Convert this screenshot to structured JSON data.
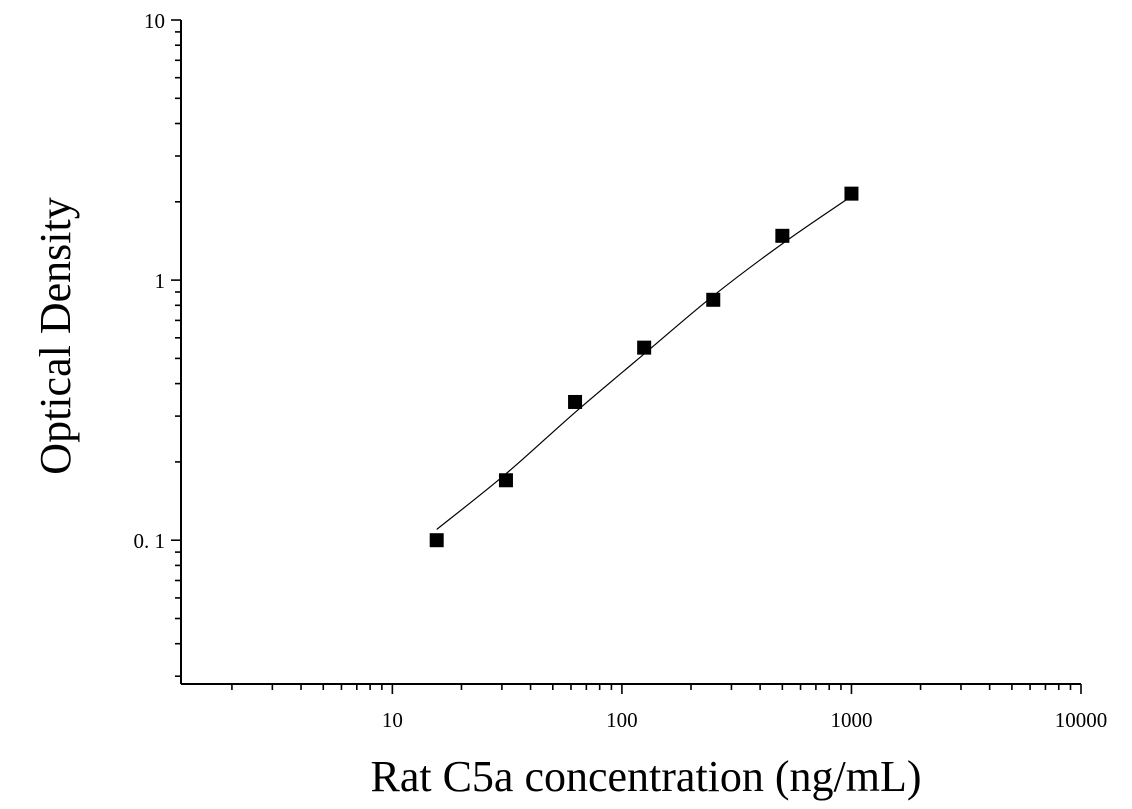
{
  "chart_data": {
    "type": "scatter",
    "title": "",
    "xlabel": "Rat C5a concentration (ng/mL)",
    "ylabel": "Optical Density",
    "xscale": "log",
    "yscale": "log",
    "xlim": [
      1.2,
      10000
    ],
    "ylim": [
      0.028,
      10
    ],
    "x_ticks": [
      {
        "value": 10,
        "label": "10"
      },
      {
        "value": 100,
        "label": "100"
      },
      {
        "value": 1000,
        "label": "1000"
      },
      {
        "value": 10000,
        "label": "10000"
      }
    ],
    "y_ticks": [
      {
        "value": 0.1,
        "label": "0. 1"
      },
      {
        "value": 1,
        "label": "1"
      },
      {
        "value": 10,
        "label": "10"
      }
    ],
    "series": [
      {
        "marker": "square",
        "color": "#000000",
        "x": [
          15.6,
          31.25,
          62.5,
          125,
          250,
          500,
          1000
        ],
        "y": [
          0.1,
          0.17,
          0.34,
          0.55,
          0.84,
          1.48,
          2.15
        ]
      }
    ],
    "fit_curve": {
      "color": "#000000",
      "x": [
        15.6,
        31.25,
        62.5,
        125,
        250,
        500,
        1000
      ],
      "y": [
        0.11,
        0.18,
        0.31,
        0.52,
        0.87,
        1.38,
        2.1
      ]
    },
    "grid": false,
    "legend": "none"
  }
}
